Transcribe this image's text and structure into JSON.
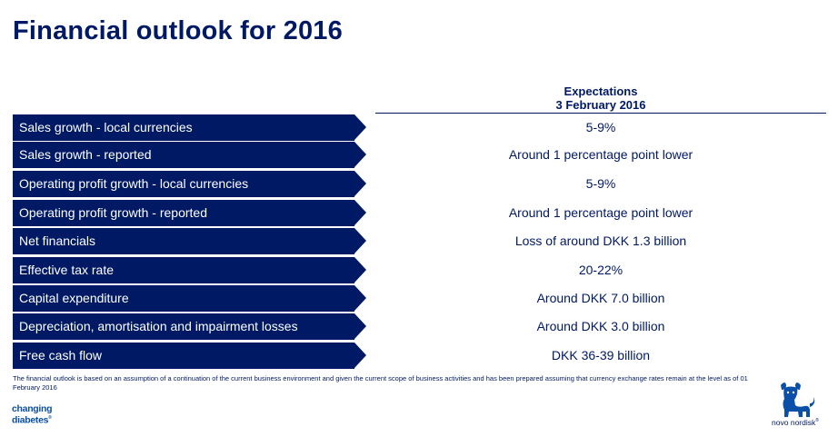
{
  "title": "Financial outlook for 2016",
  "expectations_header": {
    "line1": "Expectations",
    "line2": "3 February 2016"
  },
  "rows": [
    {
      "label": "Sales growth - local currencies",
      "value": "5-9%"
    },
    {
      "label": "Sales growth - reported",
      "value": "Around 1 percentage point lower"
    },
    {
      "label": "Operating profit growth - local currencies",
      "value": "5-9%"
    },
    {
      "label": "Operating profit growth - reported",
      "value": "Around 1 percentage point lower"
    },
    {
      "label": "Net financials",
      "value": "Loss of around DKK 1.3 billion"
    },
    {
      "label": "Effective tax rate",
      "value": "20-22%"
    },
    {
      "label": "Capital expenditure",
      "value": "Around DKK 7.0 billion"
    },
    {
      "label": "Depreciation, amortisation and impairment losses",
      "value": "Around DKK 3.0 billion"
    },
    {
      "label": "Free cash flow",
      "value": "DKK 36-39 billion"
    }
  ],
  "footnote": "The financial outlook is based on an assumption of a continuation of the current business environment and given the current scope of business activities and has been prepared assuming that currency exchange rates remain at the level as of 01 February 2016",
  "logos": {
    "changing_diabetes_line1": "changing",
    "changing_diabetes_line2": "diabetes",
    "changing_diabetes_mark": "®",
    "novo_nordisk": "novo nordisk",
    "novo_nordisk_mark": "®"
  },
  "colors": {
    "brand_navy": "#001965",
    "logo_blue": "#0a4fa8",
    "background": "#ffffff"
  },
  "icons": [
    "novo-nordisk-bull-icon"
  ]
}
